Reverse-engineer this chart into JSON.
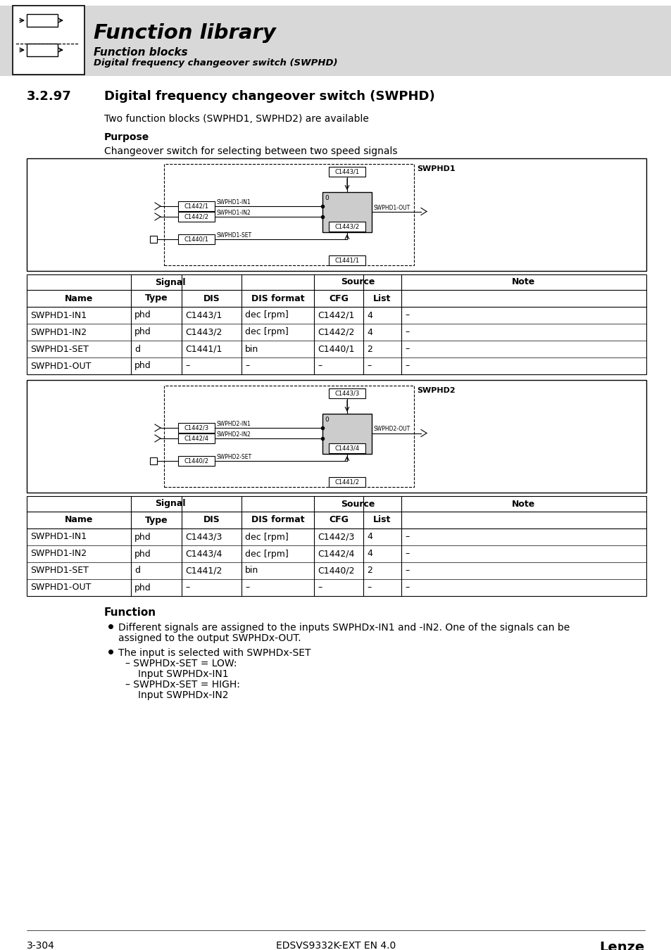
{
  "page_bg": "#ffffff",
  "header_bg": "#d8d8d8",
  "header_title": "Function library",
  "header_sub1": "Function blocks",
  "header_sub2": "Digital frequency changeover switch (SWPHD)",
  "section_num": "3.2.97",
  "section_title": "Digital frequency changeover switch (SWPHD)",
  "intro_text": "Two function blocks (SWPHD1, SWPHD2) are available",
  "purpose_label": "Purpose",
  "purpose_text": "Changeover switch for selecting between two speed signals",
  "function_label": "Function",
  "table1_rows": [
    [
      "SWPHD1-IN1",
      "phd",
      "C1443/1",
      "dec [rpm]",
      "C1442/1",
      "4",
      "–"
    ],
    [
      "SWPHD1-IN2",
      "phd",
      "C1443/2",
      "dec [rpm]",
      "C1442/2",
      "4",
      "–"
    ],
    [
      "SWPHD1-SET",
      "d",
      "C1441/1",
      "bin",
      "C1440/1",
      "2",
      "–"
    ],
    [
      "SWPHD1-OUT",
      "phd",
      "–",
      "–",
      "–",
      "–",
      "–"
    ]
  ],
  "table2_rows": [
    [
      "SWPHD1-IN1",
      "phd",
      "C1443/3",
      "dec [rpm]",
      "C1442/3",
      "4",
      "–"
    ],
    [
      "SWPHD1-IN2",
      "phd",
      "C1443/4",
      "dec [rpm]",
      "C1442/4",
      "4",
      "–"
    ],
    [
      "SWPHD1-SET",
      "d",
      "C1441/2",
      "bin",
      "C1440/2",
      "2",
      "–"
    ],
    [
      "SWPHD1-OUT",
      "phd",
      "–",
      "–",
      "–",
      "–",
      "–"
    ]
  ],
  "footer_left": "3-304",
  "footer_center": "EDSVS9332K-EXT EN 4.0",
  "footer_right": "Lenze"
}
